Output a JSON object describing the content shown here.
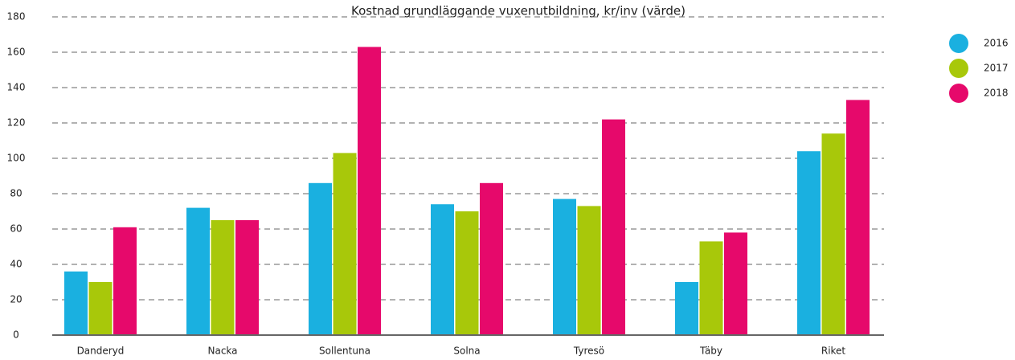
{
  "chart_data": {
    "type": "bar",
    "title": "Kostnad grundläggande vuxenutbildning, kr/inv (värde)",
    "categories": [
      "Danderyd",
      "Nacka",
      "Sollentuna",
      "Solna",
      "Tyresö",
      "Täby",
      "Riket"
    ],
    "series": [
      {
        "name": "2016",
        "color": "#1ab0e0",
        "values": [
          36,
          72,
          86,
          74,
          77,
          30,
          104
        ]
      },
      {
        "name": "2017",
        "color": "#a8c80a",
        "values": [
          30,
          65,
          103,
          70,
          73,
          53,
          114
        ]
      },
      {
        "name": "2018",
        "color": "#e6096b",
        "values": [
          61,
          65,
          163,
          86,
          122,
          58,
          133
        ]
      }
    ],
    "ylim": [
      0,
      180
    ],
    "yticks": [
      0,
      20,
      40,
      60,
      80,
      100,
      120,
      140,
      160,
      180
    ],
    "grid": true,
    "legend": "right"
  }
}
